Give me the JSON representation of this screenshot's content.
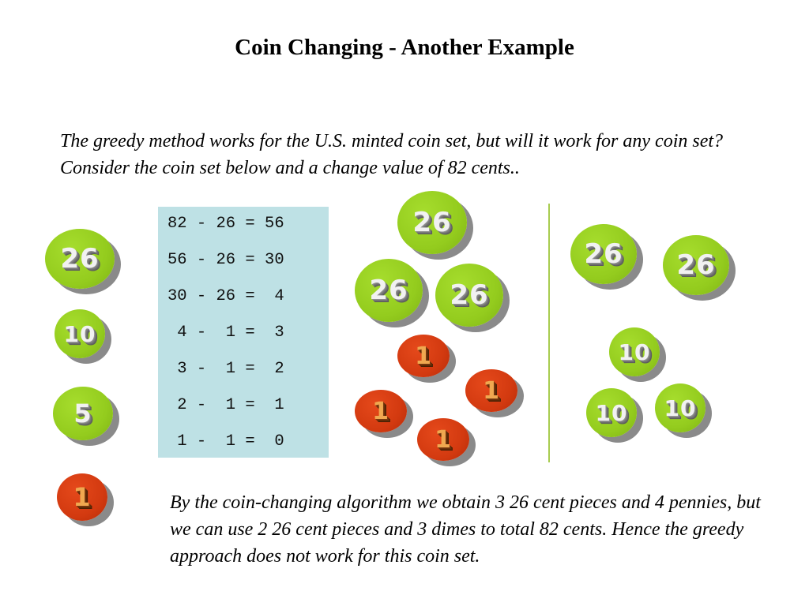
{
  "title": "Coin Changing - Another Example",
  "intro_text": "The greedy method works for the U.S. minted coin set, but will it work for any coin set?  Consider the coin set below and a change value of 82 cents..",
  "coin_set": [
    "26",
    "10",
    "5",
    "1"
  ],
  "calculation_lines": [
    "82 - 26 = 56",
    "56 - 26 = 30",
    "30 - 26 =  4",
    " 4 -  1 =  3",
    " 3 -  1 =  2",
    " 2 -  1 =  1",
    " 1 -  1 =  0"
  ],
  "greedy_result_coins": [
    "26",
    "26",
    "26",
    "1",
    "1",
    "1",
    "1"
  ],
  "optimal_result_coins": [
    "26",
    "26",
    "10",
    "10",
    "10"
  ],
  "conclusion_text": "By the coin-changing algorithm we obtain 3 26 cent pieces and 4 pennies, but we can use 2 26 cent pieces and 3 dimes to total 82 cents. Hence the greedy approach does not work for this coin set.",
  "colors": {
    "coin_green": "#94cc1e",
    "coin_red": "#d33a10",
    "calc_box_bg": "#bee1e5",
    "divider": "#a8cc50"
  }
}
